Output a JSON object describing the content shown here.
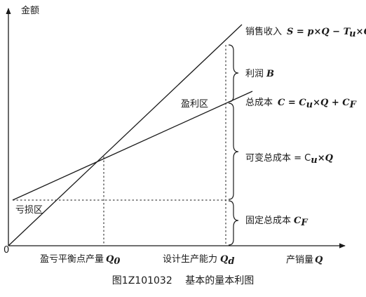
{
  "axes": {
    "y_label": "金额",
    "x_label_cn": "产销量",
    "x_label_sym": "Q",
    "origin": "0"
  },
  "lines": {
    "revenue": {
      "cn": "销售收入",
      "formula": "S = p×Q − T",
      "sub": "u",
      "tail": "×Q"
    },
    "total_cost": {
      "cn": "总成本",
      "formula": "C = C",
      "sub1": "u",
      "mid": "×Q + C",
      "sub2": "F"
    }
  },
  "braces": {
    "profit": {
      "cn": "利润",
      "sym": "B"
    },
    "variable_cost": {
      "cn": "可变总成本 = C",
      "sub": "u",
      "tail": "×Q"
    },
    "fixed_cost": {
      "cn": "固定总成本",
      "sym": "C",
      "sub": "F"
    }
  },
  "regions": {
    "profit_zone": "盈利区",
    "loss_zone": "亏损区"
  },
  "x_marks": {
    "breakeven": {
      "cn": "盈亏平衡点产量",
      "sym": "Q",
      "sub": "0"
    },
    "design_capacity": {
      "cn": "设计生产能力",
      "sym": "Q",
      "sub": "d"
    }
  },
  "caption": "图1Z101032　 基本的量本利图"
}
